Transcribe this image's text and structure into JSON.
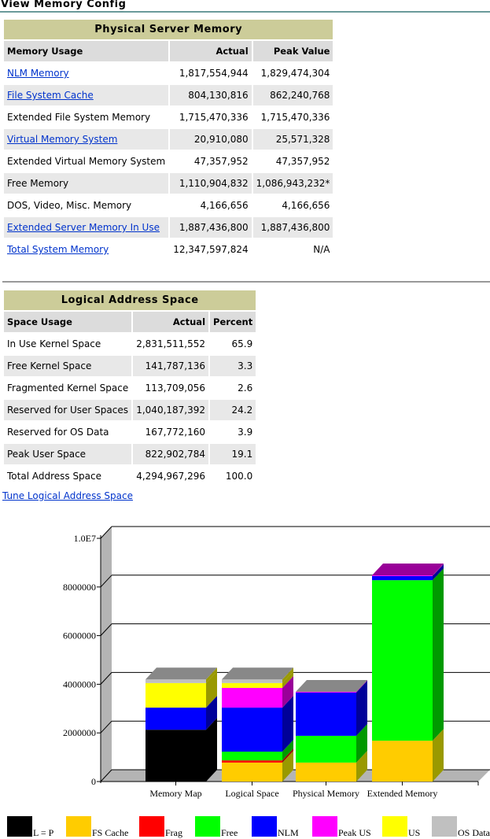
{
  "header": {
    "title": "View Memory Config"
  },
  "physical": {
    "caption": "Physical Server Memory",
    "headers": [
      "Memory Usage",
      "Actual",
      "Peak Value"
    ],
    "rows": [
      {
        "label": "NLM Memory",
        "link": true,
        "actual": "1,817,554,944",
        "peak": "1,829,474,304"
      },
      {
        "label": "File System Cache",
        "link": true,
        "actual": "804,130,816",
        "peak": "862,240,768"
      },
      {
        "label": "Extended File System Memory",
        "link": false,
        "actual": "1,715,470,336",
        "peak": "1,715,470,336"
      },
      {
        "label": "Virtual Memory System",
        "link": true,
        "actual": "20,910,080",
        "peak": "25,571,328"
      },
      {
        "label": "Extended Virtual Memory System",
        "link": false,
        "actual": "47,357,952",
        "peak": "47,357,952"
      },
      {
        "label": "Free Memory",
        "link": false,
        "actual": "1,110,904,832",
        "peak": "1,086,943,232*"
      },
      {
        "label": "DOS, Video, Misc. Memory",
        "link": false,
        "actual": "4,166,656",
        "peak": "4,166,656"
      },
      {
        "label": "Extended Server Memory In Use",
        "link": true,
        "actual": "1,887,436,800",
        "peak": "1,887,436,800"
      },
      {
        "label": "Total System Memory",
        "link": true,
        "actual": "12,347,597,824",
        "peak": "N/A"
      }
    ]
  },
  "logical": {
    "caption": "Logical Address Space",
    "headers": [
      "Space Usage",
      "Actual",
      "Percent"
    ],
    "rows": [
      {
        "label": "In Use Kernel Space",
        "actual": "2,831,511,552",
        "pct": "65.9"
      },
      {
        "label": "Free Kernel Space",
        "actual": "141,787,136",
        "pct": "3.3"
      },
      {
        "label": "Fragmented Kernel Space",
        "actual": "113,709,056",
        "pct": "2.6"
      },
      {
        "label": "Reserved for User Spaces",
        "actual": "1,040,187,392",
        "pct": "24.2"
      },
      {
        "label": "Reserved for OS Data",
        "actual": "167,772,160",
        "pct": "3.9"
      },
      {
        "label": "Peak User Space",
        "actual": "822,902,784",
        "pct": "19.1"
      },
      {
        "label": "Total Address Space",
        "actual": "4,294,967,296",
        "pct": "100.0"
      }
    ],
    "tune_link": "Tune Logical Address Space"
  },
  "chart_data": {
    "type": "bar",
    "stacked": true,
    "ylim": [
      0,
      10000000
    ],
    "yticks": [
      "0",
      "2000000",
      "4000000",
      "6000000",
      "8000000",
      "1.0E7"
    ],
    "categories": [
      "Memory Map",
      "Logical Space",
      "Physical Memory",
      "Extended Memory"
    ],
    "legend": [
      {
        "name": "L = P",
        "color": "#000000",
        "side": "#000000"
      },
      {
        "name": "FS Cache",
        "color": "#ffcc00",
        "side": "#999900"
      },
      {
        "name": "Frag",
        "color": "#ff0000",
        "side": "#990000"
      },
      {
        "name": "Free",
        "color": "#00ff00",
        "side": "#009900"
      },
      {
        "name": "NLM",
        "color": "#0000ff",
        "side": "#000099"
      },
      {
        "name": "Peak US",
        "color": "#ff00ff",
        "side": "#990099"
      },
      {
        "name": "US",
        "color": "#ffff00",
        "side": "#999900"
      },
      {
        "name": "OS Data",
        "color": "#c0c0c0",
        "side": "#999900"
      }
    ],
    "series": [
      {
        "name": "L = P",
        "values": [
          2130000,
          0,
          0,
          0
        ]
      },
      {
        "name": "FS Cache",
        "values": [
          0,
          780000,
          780000,
          1680000
        ]
      },
      {
        "name": "Frag",
        "values": [
          0,
          90000,
          0,
          0
        ]
      },
      {
        "name": "Free",
        "values": [
          0,
          360000,
          1100000,
          6600000
        ]
      },
      {
        "name": "NLM",
        "values": [
          910000,
          1810000,
          1780000,
          170000
        ]
      },
      {
        "name": "Peak US",
        "values": [
          0,
          810000,
          30000,
          30000
        ]
      },
      {
        "name": "US",
        "values": [
          1010000,
          200000,
          0,
          0
        ]
      },
      {
        "name": "OS Data",
        "values": [
          150000,
          150000,
          0,
          0
        ]
      }
    ]
  }
}
